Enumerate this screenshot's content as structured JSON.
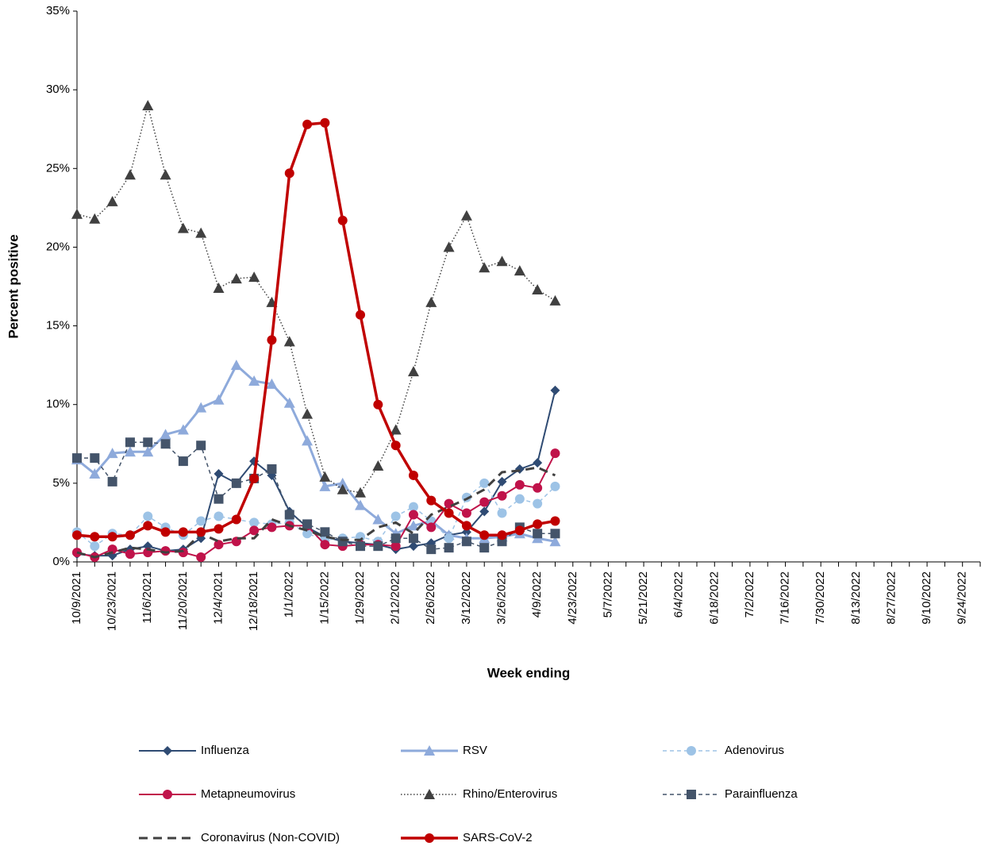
{
  "chart_data": {
    "type": "line",
    "x_label": "Week ending",
    "y_label": "Percent positive",
    "categories": [
      "10/9/2021",
      null,
      "10/23/2021",
      null,
      "11/6/2021",
      null,
      "11/20/2021",
      null,
      "12/4/2021",
      null,
      "12/18/2021",
      null,
      "1/1/2022",
      null,
      "1/15/2022",
      null,
      "1/29/2022",
      null,
      "2/12/2022",
      null,
      "2/26/2022",
      null,
      "3/12/2022",
      null,
      "3/26/2022",
      null,
      "4/9/2022",
      null,
      "4/23/2022",
      null,
      "5/7/2022",
      null,
      "5/21/2022",
      null,
      "6/4/2022",
      null,
      "6/18/2022",
      null,
      "7/2/2022",
      null,
      "7/16/2022",
      null,
      "7/30/2022",
      null,
      "8/13/2022",
      null,
      "8/27/2022",
      null,
      "9/10/2022",
      null,
      "9/24/2022",
      null
    ],
    "ylim": [
      0,
      35
    ],
    "yticks": [
      {
        "value": 0,
        "label": "0%"
      },
      {
        "value": 5,
        "label": "5%"
      },
      {
        "value": 10,
        "label": "10%"
      },
      {
        "value": 15,
        "label": "15%"
      },
      {
        "value": 20,
        "label": "20%"
      },
      {
        "value": 25,
        "label": "25%"
      },
      {
        "value": 30,
        "label": "30%"
      },
      {
        "value": 35,
        "label": "35%"
      }
    ],
    "grid": false,
    "series": [
      {
        "name": "Influenza",
        "color": "#2f4b73",
        "marker": "diamond",
        "line_style": "solid",
        "values": [
          0.5,
          0.4,
          0.4,
          0.8,
          1.0,
          0.7,
          0.8,
          1.5,
          5.6,
          5.0,
          6.4,
          5.5,
          3.2,
          2.2,
          1.6,
          1.3,
          1.2,
          1.1,
          0.8,
          1.0,
          1.2,
          1.7,
          1.9,
          3.2,
          5.1,
          5.9,
          6.3,
          10.9,
          null,
          null,
          null,
          null,
          null,
          null,
          null,
          null,
          null,
          null,
          null,
          null,
          null,
          null,
          null,
          null,
          null,
          null,
          null,
          null,
          null,
          null,
          null,
          null
        ]
      },
      {
        "name": "RSV",
        "color": "#8eaadb",
        "marker": "triangle",
        "line_style": "thick",
        "values": [
          6.5,
          5.6,
          6.9,
          7.0,
          7.0,
          8.1,
          8.4,
          9.8,
          10.3,
          12.5,
          11.5,
          11.3,
          10.1,
          7.7,
          4.8,
          5.0,
          3.6,
          2.7,
          1.8,
          2.3,
          2.6,
          1.7,
          1.5,
          1.5,
          1.6,
          1.8,
          1.5,
          1.3,
          null,
          null,
          null,
          null,
          null,
          null,
          null,
          null,
          null,
          null,
          null,
          null,
          null,
          null,
          null,
          null,
          null,
          null,
          null,
          null,
          null,
          null,
          null,
          null
        ]
      },
      {
        "name": "Adenovirus",
        "color": "#9dc3e6",
        "marker": "circle",
        "line_style": "dashed",
        "values": [
          1.9,
          1.0,
          1.8,
          1.7,
          2.9,
          2.2,
          1.7,
          2.6,
          2.9,
          2.7,
          2.5,
          2.4,
          2.5,
          1.8,
          1.4,
          1.5,
          1.6,
          1.3,
          2.9,
          3.5,
          2.6,
          1.5,
          4.1,
          5.0,
          3.1,
          4.0,
          3.7,
          4.8,
          null,
          null,
          null,
          null,
          null,
          null,
          null,
          null,
          null,
          null,
          null,
          null,
          null,
          null,
          null,
          null,
          null,
          null,
          null,
          null,
          null,
          null,
          null,
          null
        ]
      },
      {
        "name": "Metapneumovirus",
        "color": "#c0134a",
        "marker": "circle",
        "line_style": "solid",
        "values": [
          0.6,
          0.3,
          0.8,
          0.5,
          0.6,
          0.7,
          0.6,
          0.3,
          1.1,
          1.3,
          2.0,
          2.2,
          2.3,
          2.3,
          1.1,
          1.0,
          1.1,
          1.1,
          1.0,
          3.0,
          2.2,
          3.7,
          3.1,
          3.8,
          4.2,
          4.9,
          4.7,
          6.9,
          null,
          null,
          null,
          null,
          null,
          null,
          null,
          null,
          null,
          null,
          null,
          null,
          null,
          null,
          null,
          null,
          null,
          null,
          null,
          null,
          null,
          null,
          null,
          null
        ]
      },
      {
        "name": "Rhino/Enterovirus",
        "color": "#404040",
        "marker": "triangle",
        "line_style": "dotted",
        "values": [
          22.1,
          21.8,
          22.9,
          24.6,
          29.0,
          24.6,
          21.2,
          20.9,
          17.4,
          18.0,
          18.1,
          16.5,
          14.0,
          9.4,
          5.4,
          4.6,
          4.4,
          6.1,
          8.4,
          12.1,
          16.5,
          20.0,
          22.0,
          18.7,
          19.1,
          18.5,
          17.3,
          16.6,
          null,
          null,
          null,
          null,
          null,
          null,
          null,
          null,
          null,
          null,
          null,
          null,
          null,
          null,
          null,
          null,
          null,
          null,
          null,
          null,
          null,
          null,
          null,
          null
        ]
      },
      {
        "name": "Parainfluenza",
        "color": "#44546a",
        "marker": "square",
        "line_style": "dashed",
        "values": [
          6.6,
          6.6,
          5.1,
          7.6,
          7.6,
          7.5,
          6.4,
          7.4,
          4.0,
          5.0,
          5.3,
          5.9,
          3.0,
          2.4,
          1.9,
          1.3,
          1.0,
          1.0,
          1.5,
          1.5,
          0.8,
          0.9,
          1.3,
          0.9,
          1.3,
          2.2,
          1.8,
          1.8,
          null,
          null,
          null,
          null,
          null,
          null,
          null,
          null,
          null,
          null,
          null,
          null,
          null,
          null,
          null,
          null,
          null,
          null,
          null,
          null,
          null,
          null,
          null,
          null
        ]
      },
      {
        "name": "Coronavirus (Non-COVID)",
        "color": "#404040",
        "marker": "none",
        "line_style": "longdash",
        "values": [
          0.6,
          0.3,
          0.6,
          0.9,
          0.8,
          0.6,
          0.7,
          1.8,
          1.3,
          1.5,
          1.5,
          2.7,
          2.3,
          2.0,
          1.6,
          1.4,
          1.4,
          2.2,
          2.5,
          1.8,
          3.0,
          3.5,
          4.0,
          4.6,
          5.7,
          5.8,
          6.0,
          5.5,
          null,
          null,
          null,
          null,
          null,
          null,
          null,
          null,
          null,
          null,
          null,
          null,
          null,
          null,
          null,
          null,
          null,
          null,
          null,
          null,
          null,
          null,
          null,
          null
        ]
      },
      {
        "name": "SARS-CoV-2",
        "color": "#c00000",
        "marker": "circle",
        "line_style": "heavy",
        "values": [
          1.7,
          1.6,
          1.6,
          1.7,
          2.3,
          1.9,
          1.9,
          1.9,
          2.1,
          2.7,
          5.3,
          14.1,
          24.7,
          27.8,
          27.9,
          21.7,
          15.7,
          10.0,
          7.4,
          5.5,
          3.9,
          3.1,
          2.3,
          1.7,
          1.7,
          2.0,
          2.4,
          2.6,
          null,
          null,
          null,
          null,
          null,
          null,
          null,
          null,
          null,
          null,
          null,
          null,
          null,
          null,
          null,
          null,
          null,
          null,
          null,
          null,
          null,
          null,
          null,
          null
        ]
      }
    ]
  }
}
